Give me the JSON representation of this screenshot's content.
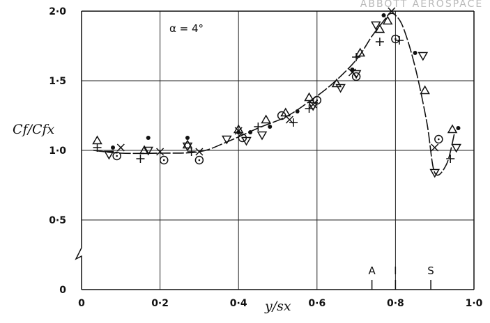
{
  "watermark": "ABBOTT AEROSPACE",
  "chart_data": {
    "type": "scatter",
    "title": "",
    "annotation": "α = 4°",
    "xlabel": "y/sx",
    "ylabel": "Cf/Cfx",
    "xlim": [
      0,
      1.0
    ],
    "ylim": [
      0,
      2.0
    ],
    "y_axis_break": true,
    "grid": true,
    "x_ticks": [
      {
        "value": 0,
        "label": "0"
      },
      {
        "value": 0.2,
        "label": "0·2"
      },
      {
        "value": 0.4,
        "label": "0·4"
      },
      {
        "value": 0.6,
        "label": "0·6"
      },
      {
        "value": 0.8,
        "label": "0·8"
      },
      {
        "value": 1.0,
        "label": "1·0"
      }
    ],
    "y_ticks": [
      {
        "value": 0,
        "label": "0"
      },
      {
        "value": 0.5,
        "label": "0·5"
      },
      {
        "value": 1.0,
        "label": "1·0"
      },
      {
        "value": 1.5,
        "label": "1·5"
      },
      {
        "value": 2.0,
        "label": "2·0"
      }
    ],
    "stations": [
      {
        "x": 0.74,
        "label": "A"
      },
      {
        "x": 0.8,
        "label": "I"
      },
      {
        "x": 0.89,
        "label": "S"
      }
    ],
    "fair_curve": {
      "x": [
        0.03,
        0.1,
        0.2,
        0.3,
        0.37,
        0.45,
        0.52,
        0.58,
        0.64,
        0.7,
        0.74,
        0.77,
        0.785,
        0.8,
        0.82,
        0.85,
        0.88,
        0.9,
        0.93,
        0.95
      ],
      "y": [
        1.0,
        0.98,
        0.98,
        0.99,
        1.06,
        1.16,
        1.24,
        1.35,
        1.48,
        1.65,
        1.82,
        1.93,
        1.98,
        1.97,
        1.88,
        1.6,
        1.2,
        0.84,
        0.9,
        1.12
      ]
    },
    "series": [
      {
        "marker": "triangle-up",
        "x": [
          0.04,
          0.16,
          0.27,
          0.4,
          0.47,
          0.52,
          0.58,
          0.65,
          0.71,
          0.76,
          0.78,
          0.875,
          0.945
        ],
        "y": [
          1.07,
          1.0,
          1.04,
          1.15,
          1.22,
          1.27,
          1.38,
          1.48,
          1.7,
          1.87,
          1.93,
          1.43,
          1.15
        ]
      },
      {
        "marker": "triangle-down",
        "x": [
          0.07,
          0.17,
          0.27,
          0.37,
          0.42,
          0.46,
          0.59,
          0.66,
          0.7,
          0.75,
          0.87,
          0.9,
          0.955
        ],
        "y": [
          0.97,
          1.0,
          1.03,
          1.08,
          1.07,
          1.11,
          1.32,
          1.45,
          1.55,
          1.9,
          1.68,
          0.84,
          1.02
        ]
      },
      {
        "marker": "circle-dot",
        "x": [
          0.09,
          0.21,
          0.3,
          0.41,
          0.51,
          0.6,
          0.7,
          0.8,
          0.91
        ],
        "y": [
          0.96,
          0.93,
          0.93,
          1.09,
          1.25,
          1.36,
          1.53,
          1.8,
          1.08
        ]
      },
      {
        "marker": "cross",
        "x": [
          0.1,
          0.2,
          0.3,
          0.4,
          0.53,
          0.59,
          0.69,
          0.79,
          0.9
        ],
        "y": [
          1.02,
          0.99,
          0.99,
          1.14,
          1.22,
          1.33,
          1.56,
          2.0,
          1.02
        ]
      },
      {
        "marker": "plus",
        "x": [
          0.04,
          0.15,
          0.28,
          0.45,
          0.54,
          0.58,
          0.7,
          0.76,
          0.81,
          0.94
        ],
        "y": [
          1.02,
          0.94,
          0.99,
          1.17,
          1.2,
          1.3,
          1.67,
          1.78,
          1.79,
          0.94
        ]
      },
      {
        "marker": "dot",
        "x": [
          0.08,
          0.17,
          0.27,
          0.4,
          0.43,
          0.48,
          0.55,
          0.69,
          0.77,
          0.85,
          0.96
        ],
        "y": [
          1.02,
          1.09,
          1.09,
          1.13,
          1.13,
          1.17,
          1.28,
          1.58,
          1.97,
          1.7,
          1.16
        ]
      }
    ]
  }
}
